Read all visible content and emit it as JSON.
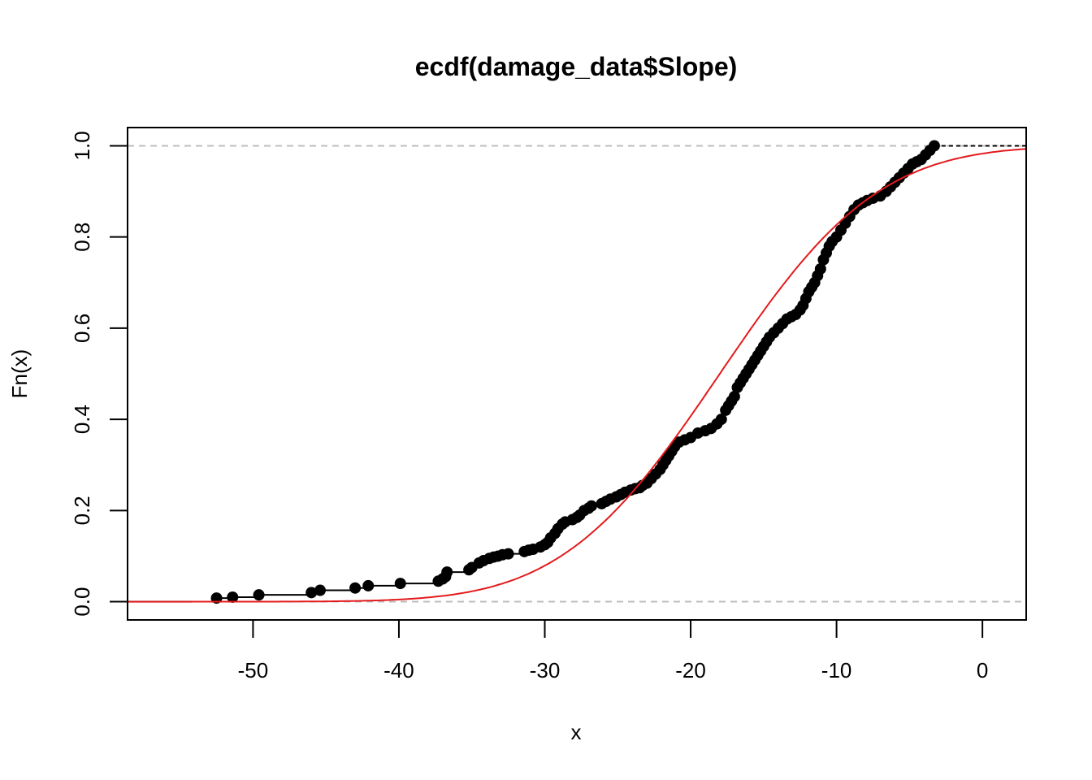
{
  "chart_data": {
    "type": "line",
    "title": "ecdf(damage_data$Slope)",
    "xlabel": "x",
    "ylabel": "Fn(x)",
    "xlim": [
      -58.6,
      3.0
    ],
    "ylim": [
      -0.04,
      1.04
    ],
    "xticks": [
      "-50",
      "-40",
      "-30",
      "-20",
      "-10",
      "0"
    ],
    "xtick_values": [
      -50,
      -40,
      -30,
      -20,
      -10,
      0
    ],
    "yticks": [
      "0.0",
      "0.2",
      "0.4",
      "0.6",
      "0.8",
      "1.0"
    ],
    "ytick_values": [
      0,
      0.2,
      0.4,
      0.6,
      0.8,
      1.0
    ],
    "reference_lines": [
      0,
      1
    ],
    "series": [
      {
        "kind": "ecdf",
        "color": "#000000",
        "x": [
          -52.5,
          -51.4,
          -49.6,
          -46.0,
          -45.4,
          -43.0,
          -42.1,
          -39.9,
          -37.3,
          -37.0,
          -36.8,
          -36.7,
          -35.2,
          -35.0,
          -34.5,
          -34.2,
          -33.8,
          -33.5,
          -33.2,
          -32.9,
          -32.5,
          -31.4,
          -31.1,
          -30.8,
          -30.3,
          -30.0,
          -29.8,
          -29.6,
          -29.3,
          -29.1,
          -28.8,
          -28.6,
          -28.1,
          -27.8,
          -27.6,
          -27.3,
          -27.0,
          -26.8,
          -26.1,
          -25.8,
          -25.5,
          -25.1,
          -24.8,
          -24.5,
          -24.1,
          -23.8,
          -23.5,
          -23.3,
          -23.0,
          -22.7,
          -22.4,
          -22.1,
          -21.9,
          -21.7,
          -21.5,
          -21.3,
          -21.1,
          -20.8,
          -20.4,
          -20.0,
          -19.5,
          -19.0,
          -18.6,
          -18.2,
          -17.9,
          -17.6,
          -17.4,
          -17.2,
          -17.0,
          -16.8,
          -16.6,
          -16.4,
          -16.2,
          -16.0,
          -15.8,
          -15.6,
          -15.4,
          -15.2,
          -15.0,
          -14.8,
          -14.6,
          -14.3,
          -14.0,
          -13.7,
          -13.4,
          -13.1,
          -12.8,
          -12.5,
          -12.3,
          -12.1,
          -11.9,
          -11.7,
          -11.5,
          -11.3,
          -11.1,
          -10.9,
          -10.7,
          -10.5,
          -10.3,
          -10.0,
          -9.7,
          -9.4,
          -9.1,
          -8.8,
          -8.5,
          -8.2,
          -7.9,
          -7.5,
          -7.0,
          -6.6,
          -6.3,
          -6.0,
          -5.7,
          -5.4,
          -5.1,
          -4.8,
          -4.5,
          -4.2,
          -3.9,
          -3.6,
          -3.3
        ],
        "y": [
          0.008,
          0.01,
          0.015,
          0.02,
          0.025,
          0.03,
          0.035,
          0.04,
          0.045,
          0.05,
          0.055,
          0.065,
          0.07,
          0.075,
          0.085,
          0.09,
          0.095,
          0.098,
          0.1,
          0.103,
          0.105,
          0.11,
          0.113,
          0.115,
          0.12,
          0.125,
          0.13,
          0.14,
          0.15,
          0.16,
          0.17,
          0.175,
          0.18,
          0.185,
          0.19,
          0.2,
          0.205,
          0.21,
          0.215,
          0.22,
          0.225,
          0.23,
          0.235,
          0.24,
          0.245,
          0.248,
          0.25,
          0.255,
          0.26,
          0.27,
          0.28,
          0.29,
          0.3,
          0.31,
          0.32,
          0.33,
          0.34,
          0.35,
          0.355,
          0.36,
          0.37,
          0.375,
          0.38,
          0.39,
          0.4,
          0.42,
          0.43,
          0.44,
          0.45,
          0.47,
          0.48,
          0.49,
          0.5,
          0.51,
          0.52,
          0.53,
          0.54,
          0.55,
          0.56,
          0.57,
          0.58,
          0.59,
          0.6,
          0.61,
          0.62,
          0.625,
          0.63,
          0.64,
          0.65,
          0.665,
          0.68,
          0.69,
          0.7,
          0.715,
          0.73,
          0.75,
          0.765,
          0.78,
          0.79,
          0.8,
          0.815,
          0.83,
          0.845,
          0.86,
          0.87,
          0.875,
          0.88,
          0.885,
          0.89,
          0.9,
          0.91,
          0.92,
          0.93,
          0.94,
          0.95,
          0.96,
          0.965,
          0.97,
          0.98,
          0.99,
          1.0
        ]
      },
      {
        "kind": "normal-cdf",
        "color": "#e41a1c",
        "mean": -18.0,
        "sd": 8.5
      }
    ]
  }
}
